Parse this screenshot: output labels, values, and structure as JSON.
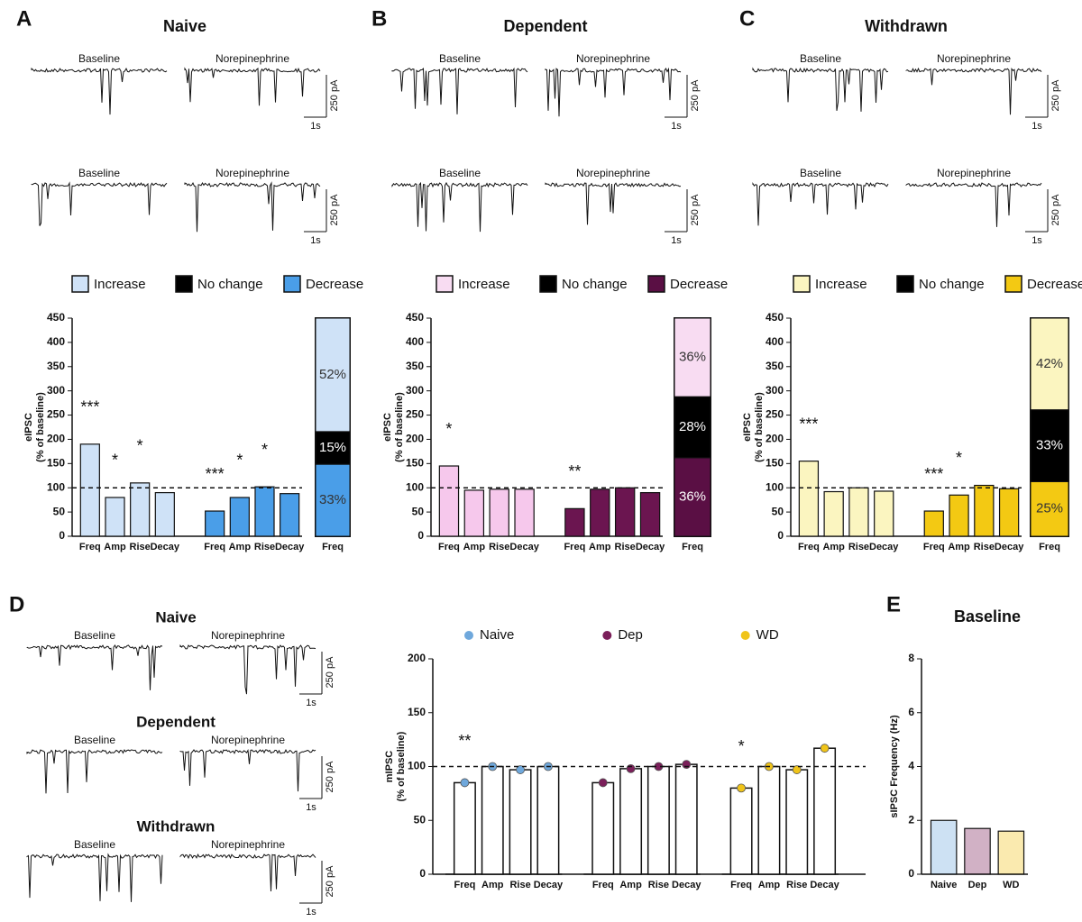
{
  "figure": {
    "letters": [
      "A",
      "B",
      "C",
      "D",
      "E"
    ],
    "traces": [
      {
        "left": "Baseline",
        "right": "Norepinephrine",
        "scale_y": "250 pA",
        "scale_x": "1s"
      },
      {
        "left": "Baseline",
        "right": "Norepinephrine",
        "scale_y": "250 pA",
        "scale_x": "1s"
      },
      {
        "left": "Baseline",
        "right": "Norepinephrine",
        "scale_y": "250 pA",
        "scale_x": "1s"
      },
      {
        "left": "Baseline",
        "right": "Norepinephrine",
        "scale_y": "250 pA",
        "scale_x": "1s"
      },
      {
        "left": "Baseline",
        "right": "Norepinephrine",
        "scale_y": "250 pA",
        "scale_x": "1s"
      },
      {
        "left": "Baseline",
        "right": "Norepinephrine",
        "scale_y": "250 pA",
        "scale_x": "1s"
      },
      {
        "title": "Naive",
        "left": "Baseline",
        "right": "Norepinephrine",
        "scale_y": "250 pA",
        "scale_x": "1s"
      },
      {
        "title": "Dependent",
        "left": "Baseline",
        "right": "Norepinephrine",
        "scale_y": "250 pA",
        "scale_x": "1s"
      },
      {
        "title": "Withdrawn",
        "left": "Baseline",
        "right": "Norepinephrine",
        "scale_y": "250 pA",
        "scale_x": "1s"
      }
    ]
  },
  "chart_data": [
    {
      "type": "bar",
      "title": "Naive",
      "ylabel": [
        "eIPSC",
        "(% of baseline)"
      ],
      "categories": [
        "Freq",
        "Amp",
        "Rise",
        "Decay",
        "Freq",
        "Amp",
        "Rise",
        "Decay"
      ],
      "values": [
        190,
        80,
        110,
        90,
        52,
        80,
        102,
        88
      ],
      "colors": [
        "#cfe2f7",
        "#cfe2f7",
        "#cfe2f7",
        "#cfe2f7",
        "#4a9ee8",
        "#4a9ee8",
        "#4a9ee8",
        "#4a9ee8"
      ],
      "annotations": [
        "***",
        "*",
        "*",
        null,
        "***",
        "*",
        "*",
        null
      ],
      "ylim": [
        0,
        450
      ],
      "yticks": [
        0,
        50,
        100,
        150,
        200,
        250,
        300,
        350,
        400,
        450
      ],
      "refline": 100
    },
    {
      "type": "stacked_bar",
      "categories": [
        "Freq"
      ],
      "ylim": [
        0,
        100
      ],
      "series": [
        {
          "name": "Increase",
          "color": "#cfe2f7",
          "values": [
            52
          ],
          "value_labels": [
            "52%"
          ]
        },
        {
          "name": "No change",
          "color": "#000000",
          "values": [
            15
          ],
          "value_labels": [
            "15%"
          ]
        },
        {
          "name": "Decrease",
          "color": "#4a9ee8",
          "values": [
            33
          ],
          "value_labels": [
            "33%"
          ]
        }
      ]
    },
    {
      "type": "bar",
      "title": "Dependent",
      "ylabel": [
        "eIPSC",
        "(% of baseline)"
      ],
      "categories": [
        "Freq",
        "Amp",
        "Rise",
        "Decay",
        "Freq",
        "Amp",
        "Rise",
        "Decay"
      ],
      "values": [
        145,
        95,
        97,
        97,
        57,
        97,
        100,
        90
      ],
      "colors": [
        "#f6c8ec",
        "#f6c8ec",
        "#f6c8ec",
        "#f6c8ec",
        "#6b1550",
        "#6b1550",
        "#6b1550",
        "#6b1550"
      ],
      "annotations": [
        "*",
        null,
        null,
        null,
        "**",
        null,
        null,
        null
      ],
      "ylim": [
        0,
        450
      ],
      "yticks": [
        0,
        50,
        100,
        150,
        200,
        250,
        300,
        350,
        400,
        450
      ],
      "refline": 100
    },
    {
      "type": "stacked_bar",
      "categories": [
        "Freq"
      ],
      "ylim": [
        0,
        100
      ],
      "series": [
        {
          "name": "Increase",
          "color": "#f8dcf2",
          "values": [
            36
          ],
          "value_labels": [
            "36%"
          ]
        },
        {
          "name": "No change",
          "color": "#000000",
          "values": [
            28
          ],
          "value_labels": [
            "28%"
          ]
        },
        {
          "name": "Decrease",
          "color": "#5a0f44",
          "values": [
            36
          ],
          "value_labels": [
            "36%"
          ]
        }
      ]
    },
    {
      "type": "bar",
      "title": "Withdrawn",
      "ylabel": [
        "eIPSC",
        "(% of baseline)"
      ],
      "categories": [
        "Freq",
        "Amp",
        "Rise",
        "Decay",
        "Freq",
        "Amp",
        "Rise",
        "Decay"
      ],
      "values": [
        155,
        92,
        100,
        93,
        52,
        85,
        105,
        98
      ],
      "colors": [
        "#fbf5c0",
        "#fbf5c0",
        "#fbf5c0",
        "#fbf5c0",
        "#f3c913",
        "#f3c913",
        "#f3c913",
        "#f3c913"
      ],
      "annotations": [
        "***",
        null,
        null,
        null,
        "***",
        "*",
        null,
        null
      ],
      "ylim": [
        0,
        450
      ],
      "yticks": [
        0,
        50,
        100,
        150,
        200,
        250,
        300,
        350,
        400,
        450
      ],
      "refline": 100
    },
    {
      "type": "stacked_bar",
      "categories": [
        "Freq"
      ],
      "ylim": [
        0,
        100
      ],
      "series": [
        {
          "name": "Increase",
          "color": "#fbf5c0",
          "values": [
            42
          ],
          "value_labels": [
            "42%"
          ]
        },
        {
          "name": "No change",
          "color": "#000000",
          "values": [
            33
          ],
          "value_labels": [
            "33%"
          ]
        },
        {
          "name": "Decrease",
          "color": "#f3c913",
          "values": [
            25
          ],
          "value_labels": [
            "25%"
          ]
        }
      ]
    },
    {
      "type": "bar",
      "ylabel": [
        "mIPSC",
        "(% of baseline)"
      ],
      "categories": [
        "Freq",
        "Amp",
        "Rise",
        "Decay"
      ],
      "series": [
        {
          "name": "Naive",
          "color": "#6fa8dc",
          "values": [
            85,
            100,
            97,
            100
          ],
          "annotations": [
            "**",
            null,
            null,
            null
          ]
        },
        {
          "name": "Dep",
          "color": "#7b1f5a",
          "values": [
            85,
            98,
            100,
            102
          ],
          "annotations": [
            null,
            null,
            null,
            null
          ]
        },
        {
          "name": "WD",
          "color": "#f0c419",
          "values": [
            80,
            100,
            97,
            117
          ],
          "annotations": [
            "*",
            null,
            null,
            null
          ]
        }
      ],
      "ylim": [
        0,
        200
      ],
      "yticks": [
        0,
        50,
        100,
        150,
        200
      ],
      "refline": 100
    },
    {
      "type": "bar",
      "title": "Baseline",
      "ylabel": [
        "sIPSC Frequency (Hz)"
      ],
      "categories": [
        "Naive",
        "Dep",
        "WD"
      ],
      "values": [
        2,
        1.7,
        1.6
      ],
      "colors": [
        "#6fa8dc",
        "#7b1f5a",
        "#f0c419"
      ],
      "ylim": [
        0,
        8
      ],
      "yticks": [
        0,
        2,
        4,
        6,
        8
      ]
    }
  ]
}
